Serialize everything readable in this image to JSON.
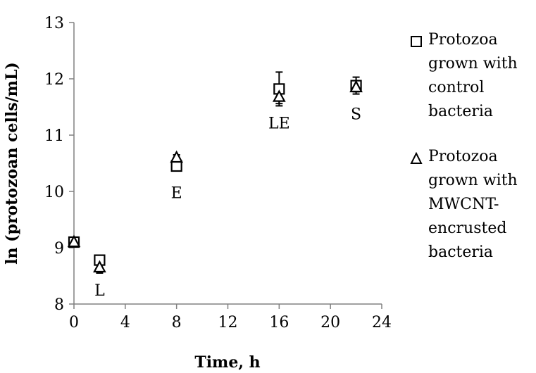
{
  "chart_data": {
    "type": "scatter",
    "xlabel": "Time, h",
    "ylabel": "ln (protozoan cells/mL)",
    "xlim": [
      0,
      24
    ],
    "ylim": [
      8,
      13
    ],
    "x_ticks": [
      "0",
      "4",
      "8",
      "12",
      "16",
      "20",
      "24"
    ],
    "y_ticks": [
      "8",
      "9",
      "10",
      "11",
      "12",
      "13"
    ],
    "grid": false,
    "legend_position": "right",
    "series": [
      {
        "name": "Protozoa grown with control bacteria",
        "marker": "square",
        "points": [
          {
            "x": 0,
            "y": 9.1,
            "err": 0.05
          },
          {
            "x": 2,
            "y": 8.78,
            "err": 0.05
          },
          {
            "x": 8,
            "y": 10.45,
            "err": 0.08
          },
          {
            "x": 16,
            "y": 11.82,
            "err": 0.3
          },
          {
            "x": 22,
            "y": 11.88,
            "err": 0.15
          }
        ]
      },
      {
        "name": "Protozoa grown with MWCNT-encrusted bacteria",
        "marker": "triangle",
        "points": [
          {
            "x": 0,
            "y": 9.1,
            "err": 0.05
          },
          {
            "x": 2,
            "y": 8.65,
            "err": 0.1
          },
          {
            "x": 8,
            "y": 10.6,
            "err": 0.05
          },
          {
            "x": 16,
            "y": 11.68,
            "err": 0.12
          },
          {
            "x": 22,
            "y": 11.85,
            "err": 0.08
          }
        ]
      }
    ],
    "annotations": [
      {
        "text": "L",
        "x": 2,
        "y": 8.25
      },
      {
        "text": "E",
        "x": 8,
        "y": 9.98
      },
      {
        "text": "LE",
        "x": 16,
        "y": 11.22
      },
      {
        "text": "S",
        "x": 22,
        "y": 11.38
      }
    ]
  },
  "legend": {
    "items": [
      {
        "marker": "square",
        "lines": [
          "Protozoa",
          "grown with",
          "control",
          "bacteria"
        ]
      },
      {
        "marker": "triangle",
        "lines": [
          "Protozoa",
          "grown with",
          "MWCNT-",
          "encrusted",
          "bacteria"
        ]
      }
    ]
  }
}
